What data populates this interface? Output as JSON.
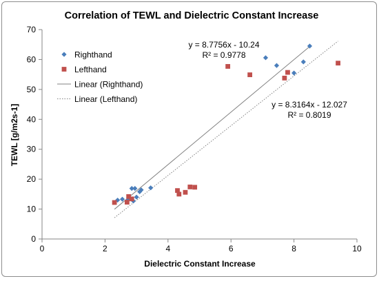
{
  "chart_data": {
    "type": "scatter",
    "title": "Correlation of TEWL and Dielectric Constant Increase",
    "xlabel": "Dielectric Constant Increase",
    "ylabel": "TEWL [g/m2s-1]",
    "xlim": [
      0,
      10
    ],
    "ylim": [
      0,
      70
    ],
    "x_ticks": [
      0,
      2,
      4,
      6,
      8,
      10
    ],
    "y_ticks": [
      0,
      10,
      20,
      30,
      40,
      50,
      60,
      70
    ],
    "grid": false,
    "legend_position": "top-left",
    "series": [
      {
        "name": "Righthand",
        "marker": "diamond",
        "color": "#4a7ebb",
        "points": [
          [
            2.4,
            13.0
          ],
          [
            2.55,
            13.3
          ],
          [
            2.7,
            12.8
          ],
          [
            2.75,
            13.8
          ],
          [
            2.8,
            13.5
          ],
          [
            2.85,
            16.9
          ],
          [
            2.9,
            12.7
          ],
          [
            2.95,
            16.9
          ],
          [
            3.0,
            14.0
          ],
          [
            3.1,
            15.8
          ],
          [
            3.15,
            16.4
          ],
          [
            3.45,
            17.1
          ],
          [
            7.1,
            60.6
          ],
          [
            7.45,
            58.0
          ],
          [
            8.0,
            55.5
          ],
          [
            8.3,
            59.2
          ],
          [
            8.5,
            64.5
          ]
        ]
      },
      {
        "name": "Lefthand",
        "marker": "square",
        "color": "#c0504d",
        "points": [
          [
            2.3,
            12.2
          ],
          [
            2.7,
            12.3
          ],
          [
            2.75,
            14.2
          ],
          [
            2.85,
            13.4
          ],
          [
            4.3,
            16.2
          ],
          [
            4.35,
            15.0
          ],
          [
            4.55,
            15.6
          ],
          [
            4.7,
            17.4
          ],
          [
            4.85,
            17.3
          ],
          [
            5.9,
            57.7
          ],
          [
            6.6,
            54.9
          ],
          [
            7.7,
            53.8
          ],
          [
            7.8,
            55.7
          ],
          [
            9.4,
            58.8
          ]
        ]
      }
    ],
    "trendlines": [
      {
        "name": "Linear (Righthand)",
        "style": "solid",
        "color": "#808080",
        "slope": 8.7756,
        "intercept": -10.24,
        "x_range": [
          2.3,
          8.5
        ],
        "equation": "y = 8.7756x - 10.24",
        "r2": "R² = 0.9778"
      },
      {
        "name": "Linear (Lefthand)",
        "style": "dotted",
        "color": "#808080",
        "slope": 8.3164,
        "intercept": -12.027,
        "x_range": [
          2.3,
          9.4
        ],
        "equation": "y = 8.3164x - 12.027",
        "r2": "R² = 0.8019"
      }
    ]
  }
}
